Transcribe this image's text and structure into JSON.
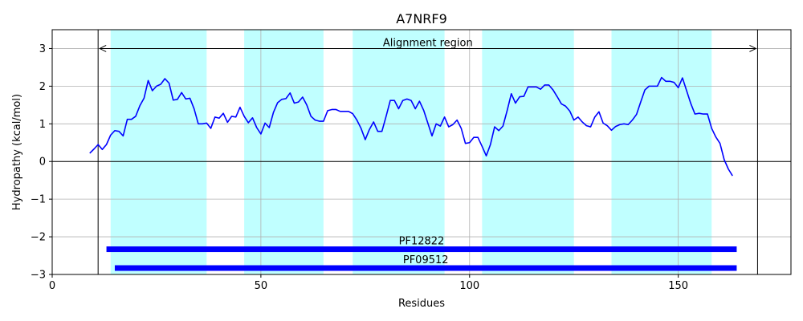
{
  "chart_data": {
    "type": "line",
    "title": "A7NRF9",
    "xlabel": "Residues",
    "ylabel": "Hydropathy (kcal/mol)",
    "xlim": [
      0,
      177
    ],
    "ylim": [
      -3,
      3.5
    ],
    "xticks": [
      0,
      50,
      100,
      150
    ],
    "yticks": [
      -3,
      -2,
      -1,
      0,
      1,
      2,
      3
    ],
    "grid": true,
    "colors": {
      "line": "#0000ff",
      "span": "#c0ffff",
      "domain_bar": "#0000ff",
      "grid": "#b0b0b0",
      "black": "#000000"
    },
    "shaded_regions": [
      [
        14,
        37
      ],
      [
        46,
        65
      ],
      [
        72,
        94
      ],
      [
        103,
        125
      ],
      [
        134,
        158
      ]
    ],
    "alignment_region": {
      "label": "Alignment region",
      "start": 11,
      "end": 169,
      "y": 3.0
    },
    "domains": [
      {
        "name": "PF12822",
        "start": 13,
        "end": 164,
        "y": -2.33
      },
      {
        "name": "PF09512",
        "start": 15,
        "end": 164,
        "y": -2.83
      }
    ],
    "series": [
      {
        "x": [
          9,
          10,
          11,
          12,
          13,
          14,
          15,
          16,
          17,
          18,
          19,
          20,
          21,
          22,
          23,
          24,
          25,
          26,
          27,
          28,
          29,
          30,
          31,
          32,
          33,
          34,
          35,
          36,
          37,
          38,
          39,
          40,
          41,
          42,
          43,
          44,
          45,
          46,
          47,
          48,
          49,
          50,
          51,
          52,
          53,
          54,
          55,
          56,
          57,
          58,
          59,
          60,
          61,
          62,
          63,
          64,
          65,
          66,
          67,
          68,
          69,
          70,
          71,
          72,
          73,
          74,
          75,
          76,
          77,
          78,
          79,
          80,
          81,
          82,
          83,
          84,
          85,
          86,
          87,
          88,
          89,
          90,
          91,
          92,
          93,
          94,
          95,
          96,
          97,
          98,
          99,
          100,
          101,
          102,
          103,
          104,
          105,
          106,
          107,
          108,
          109,
          110,
          111,
          112,
          113,
          114,
          115,
          116,
          117,
          118,
          119,
          120,
          121,
          122,
          123,
          124,
          125,
          126,
          127,
          128,
          129,
          130,
          131,
          132,
          133,
          134,
          135,
          136,
          137,
          138,
          139,
          140,
          141,
          142,
          143,
          144,
          145,
          146,
          147,
          148,
          149,
          150,
          151,
          152,
          153,
          154,
          155,
          156,
          157,
          158,
          159,
          160,
          161,
          162,
          163
        ],
        "y": [
          0.22,
          0.33,
          0.45,
          0.32,
          0.45,
          0.7,
          0.82,
          0.8,
          0.68,
          1.12,
          1.12,
          1.2,
          1.48,
          1.68,
          2.15,
          1.88,
          2.0,
          2.05,
          2.2,
          2.08,
          1.63,
          1.65,
          1.83,
          1.66,
          1.68,
          1.4,
          1.0,
          1.0,
          1.02,
          0.88,
          1.18,
          1.15,
          1.28,
          1.04,
          1.2,
          1.18,
          1.44,
          1.2,
          1.03,
          1.16,
          0.9,
          0.73,
          1.02,
          0.9,
          1.3,
          1.56,
          1.65,
          1.67,
          1.82,
          1.55,
          1.58,
          1.71,
          1.5,
          1.2,
          1.1,
          1.07,
          1.07,
          1.35,
          1.38,
          1.38,
          1.33,
          1.33,
          1.33,
          1.27,
          1.1,
          0.88,
          0.58,
          0.85,
          1.05,
          0.8,
          0.8,
          1.2,
          1.62,
          1.62,
          1.4,
          1.62,
          1.66,
          1.62,
          1.4,
          1.6,
          1.36,
          1.02,
          0.68,
          1.0,
          0.94,
          1.18,
          0.92,
          0.98,
          1.1,
          0.88,
          0.48,
          0.5,
          0.64,
          0.64,
          0.4,
          0.15,
          0.45,
          0.92,
          0.82,
          0.94,
          1.35,
          1.8,
          1.55,
          1.72,
          1.73,
          1.98,
          1.98,
          1.98,
          1.92,
          2.03,
          2.03,
          1.9,
          1.72,
          1.53,
          1.47,
          1.34,
          1.1,
          1.18,
          1.05,
          0.95,
          0.92,
          1.18,
          1.32,
          1.02,
          0.95,
          0.83,
          0.93,
          0.98,
          1.0,
          0.98,
          1.1,
          1.25,
          1.58,
          1.9,
          2.0,
          2.0,
          2.0,
          2.23,
          2.13,
          2.13,
          2.1,
          1.96,
          2.22,
          1.88,
          1.54,
          1.26,
          1.28,
          1.26,
          1.26,
          0.88,
          0.65,
          0.48,
          0.05,
          -0.2,
          -0.38
        ]
      }
    ]
  }
}
